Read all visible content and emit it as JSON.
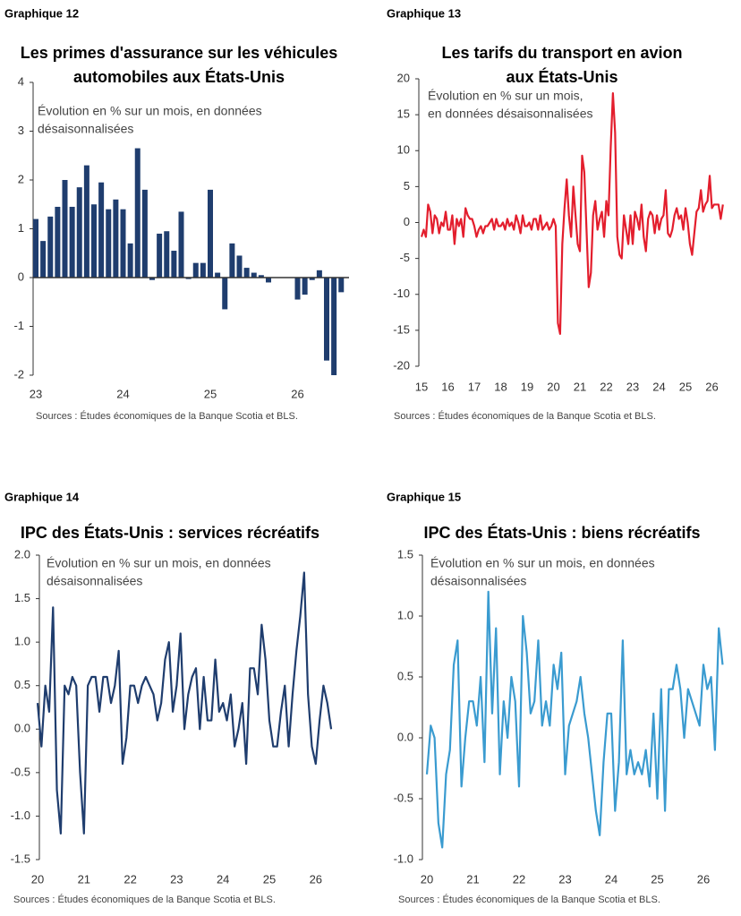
{
  "chart_data": [
    {
      "type": "bar",
      "label": "Graphique 12",
      "title": [
        "Les primes d'assurance sur les véhicules",
        "automobiles aux États-Unis"
      ],
      "annotation": [
        "Évolution en % sur un mois, en données",
        "désaisonnalisées"
      ],
      "source": "Sources : Études économiques de la Banque Scotia et BLS.",
      "color": "#1f3d6e",
      "categories": [
        "23",
        null,
        null,
        null,
        null,
        null,
        null,
        null,
        null,
        null,
        null,
        null,
        "24",
        null,
        null,
        null,
        null,
        null,
        null,
        null,
        null,
        null,
        null,
        null,
        "25",
        null,
        null,
        null,
        null,
        null,
        null,
        null,
        null,
        null,
        null,
        null,
        "26",
        null,
        null,
        null,
        null,
        null,
        null
      ],
      "values": [
        1.2,
        0.75,
        1.25,
        1.45,
        2.0,
        1.45,
        1.85,
        2.3,
        1.5,
        1.95,
        1.4,
        1.6,
        1.4,
        0.7,
        2.65,
        1.8,
        -0.05,
        0.9,
        0.95,
        0.55,
        1.35,
        -0.03,
        0.3,
        0.3,
        1.8,
        0.1,
        -0.65,
        0.7,
        0.45,
        0.2,
        0.1,
        0.05,
        -0.1,
        0,
        0,
        0,
        -0.45,
        -0.35,
        -0.05,
        0.15,
        -1.7,
        -2.0,
        -0.3
      ],
      "ylim": [
        -2,
        4
      ],
      "yticks": [
        -2,
        -1,
        0,
        1,
        2,
        3,
        4
      ]
    },
    {
      "type": "line",
      "label": "Graphique 13",
      "title": [
        "Les tarifs du transport en avion",
        "aux États-Unis"
      ],
      "annotation": [
        "Évolution en % sur un mois,",
        "en données désaisonnalisées"
      ],
      "source": "Sources : Études économiques de la Banque Scotia et BLS.",
      "color": "#e31e2d",
      "categories": [
        "15",
        null,
        null,
        null,
        null,
        null,
        null,
        null,
        null,
        null,
        null,
        null,
        "16",
        null,
        null,
        null,
        null,
        null,
        null,
        null,
        null,
        null,
        null,
        null,
        "17",
        null,
        null,
        null,
        null,
        null,
        null,
        null,
        null,
        null,
        null,
        null,
        "18",
        null,
        null,
        null,
        null,
        null,
        null,
        null,
        null,
        null,
        null,
        null,
        "19",
        null,
        null,
        null,
        null,
        null,
        null,
        null,
        null,
        null,
        null,
        null,
        "20",
        null,
        null,
        null,
        null,
        null,
        null,
        null,
        null,
        null,
        null,
        null,
        "21",
        null,
        null,
        null,
        null,
        null,
        null,
        null,
        null,
        null,
        null,
        null,
        "22",
        null,
        null,
        null,
        null,
        null,
        null,
        null,
        null,
        null,
        null,
        null,
        "23",
        null,
        null,
        null,
        null,
        null,
        null,
        null,
        null,
        null,
        null,
        null,
        "24",
        null,
        null,
        null,
        null,
        null,
        null,
        null,
        null,
        null,
        null,
        null,
        "25",
        null,
        null,
        null,
        null,
        null,
        null,
        null,
        null,
        null,
        null,
        null,
        "26",
        null,
        null,
        null,
        null,
        null
      ],
      "values": [
        -2,
        -1,
        -2,
        2.5,
        1.5,
        -1.5,
        1,
        0.5,
        -1.5,
        0,
        -0.5,
        1.5,
        -1,
        -1,
        1,
        -3,
        0.5,
        -0.5,
        0.5,
        -2,
        2,
        1,
        0.5,
        0.5,
        -0.5,
        -2,
        -1,
        -0.5,
        -1.5,
        -0.5,
        -0.5,
        0,
        0.5,
        -1,
        0.5,
        -0.5,
        -0.5,
        0,
        -1,
        0.5,
        -0.5,
        0,
        -1,
        1,
        0,
        -1.5,
        1,
        -0.5,
        -0.5,
        0,
        -1,
        0.5,
        0.5,
        -1,
        1,
        -1,
        -0.5,
        0,
        -1,
        -0.5,
        0.5,
        -0.5,
        -14,
        -15.5,
        -3,
        2,
        6,
        1,
        -2,
        5,
        1,
        -3,
        -4,
        9.3,
        7,
        -1,
        -9,
        -7,
        1,
        3,
        -1,
        0.5,
        1.5,
        -2,
        3,
        1,
        10.5,
        18,
        12.5,
        -2,
        -4.5,
        -5,
        1,
        -1,
        -3,
        1,
        -3,
        1.5,
        0.5,
        -1,
        2.5,
        -2,
        -4,
        0.5,
        1.5,
        1,
        -1.5,
        1,
        -1,
        0.5,
        1,
        4.5,
        -1.5,
        -2,
        -1,
        1,
        2,
        0.5,
        1,
        -1,
        2,
        0,
        -3,
        -4.5,
        -1.5,
        1.5,
        2,
        4.5,
        1.5,
        2.5,
        3,
        6.5,
        2,
        2.5,
        2.5,
        2.5,
        0.5,
        2.5
      ],
      "ylim": [
        -20,
        20
      ],
      "yticks": [
        -20,
        -15,
        -10,
        -5,
        0,
        5,
        10,
        15,
        20
      ]
    },
    {
      "type": "line",
      "label": "Graphique 14",
      "title": [
        "IPC des États-Unis : services récréatifs"
      ],
      "annotation": [
        "Évolution en % sur un mois, en données",
        "désaisonnalisées"
      ],
      "source": "Sources : Études économiques de la Banque Scotia et BLS.",
      "color": "#1f3d6e",
      "categories": [
        "20",
        null,
        null,
        null,
        null,
        null,
        null,
        null,
        null,
        null,
        null,
        null,
        "21",
        null,
        null,
        null,
        null,
        null,
        null,
        null,
        null,
        null,
        null,
        null,
        "22",
        null,
        null,
        null,
        null,
        null,
        null,
        null,
        null,
        null,
        null,
        null,
        "23",
        null,
        null,
        null,
        null,
        null,
        null,
        null,
        null,
        null,
        null,
        null,
        "24",
        null,
        null,
        null,
        null,
        null,
        null,
        null,
        null,
        null,
        null,
        null,
        "25",
        null,
        null,
        null,
        null,
        null,
        null,
        null,
        null,
        null,
        null,
        null,
        "26",
        null,
        null,
        null,
        null
      ],
      "values": [
        0.3,
        -0.2,
        0.5,
        0.2,
        1.4,
        -0.7,
        -1.2,
        0.5,
        0.4,
        0.6,
        0.5,
        -0.5,
        -1.2,
        0.5,
        0.6,
        0.6,
        0.2,
        0.6,
        0.6,
        0.3,
        0.5,
        0.9,
        -0.4,
        -0.1,
        0.5,
        0.5,
        0.3,
        0.5,
        0.6,
        0.5,
        0.4,
        0.1,
        0.3,
        0.8,
        1.0,
        0.2,
        0.5,
        1.1,
        0,
        0.4,
        0.6,
        0.7,
        0,
        0.6,
        0.1,
        0.1,
        0.8,
        0.2,
        0.3,
        0.1,
        0.4,
        -0.2,
        0,
        0.3,
        -0.4,
        0.7,
        0.7,
        0.4,
        1.2,
        0.8,
        0.1,
        -0.2,
        -0.2,
        0.2,
        0.5,
        -0.2,
        0.4,
        0.9,
        1.3,
        1.8,
        0.4,
        -0.2,
        -0.4,
        0.1,
        0.5,
        0.3,
        0
      ],
      "ylim": [
        -1.5,
        2
      ],
      "yticks": [
        -1.5,
        {
          "value": -1,
          "label": "-1.0"
        },
        -0.5,
        {
          "value": 0,
          "label": "0.0"
        },
        0.5,
        {
          "value": 1,
          "label": "1.0"
        },
        1.5,
        {
          "value": 2,
          "label": "2.0"
        }
      ]
    },
    {
      "type": "line",
      "label": "Graphique 15",
      "title": [
        "IPC des États-Unis : biens récréatifs"
      ],
      "annotation": [
        "Évolution en % sur un mois, en données",
        "désaisonnalisées"
      ],
      "source": "Sources : Études économiques de la Banque Scotia et BLS.",
      "color": "#3a9bd0",
      "categories": [
        "20",
        null,
        null,
        null,
        null,
        null,
        null,
        null,
        null,
        null,
        null,
        null,
        "21",
        null,
        null,
        null,
        null,
        null,
        null,
        null,
        null,
        null,
        null,
        null,
        "22",
        null,
        null,
        null,
        null,
        null,
        null,
        null,
        null,
        null,
        null,
        null,
        "23",
        null,
        null,
        null,
        null,
        null,
        null,
        null,
        null,
        null,
        null,
        null,
        "24",
        null,
        null,
        null,
        null,
        null,
        null,
        null,
        null,
        null,
        null,
        null,
        "25",
        null,
        null,
        null,
        null,
        null,
        null,
        null,
        null,
        null,
        null,
        null,
        "26",
        null,
        null,
        null,
        null,
        null
      ],
      "values": [
        -0.3,
        0.1,
        0,
        -0.7,
        -0.9,
        -0.3,
        -0.1,
        0.6,
        0.8,
        -0.4,
        0,
        0.3,
        0.3,
        0.1,
        0.5,
        -0.2,
        1.2,
        0.2,
        0.9,
        -0.3,
        0.3,
        0,
        0.5,
        0.3,
        -0.4,
        1.0,
        0.7,
        0.2,
        0.3,
        0.8,
        0.1,
        0.3,
        0.1,
        0.6,
        0.4,
        0.7,
        -0.3,
        0.1,
        0.2,
        0.3,
        0.5,
        0.2,
        0,
        -0.3,
        -0.6,
        -0.8,
        -0.2,
        0.2,
        0.2,
        -0.6,
        -0.2,
        0.8,
        -0.3,
        -0.1,
        -0.3,
        -0.2,
        -0.3,
        -0.1,
        -0.4,
        0.2,
        -0.5,
        0.4,
        -0.6,
        0.4,
        0.4,
        0.6,
        0.4,
        0,
        0.4,
        0.3,
        0.2,
        0.1,
        0.6,
        0.4,
        0.5,
        -0.1,
        0.9,
        0.6
      ],
      "ylim": [
        -1,
        1.5
      ],
      "yticks": [
        {
          "value": -1,
          "label": "-1.0"
        },
        -0.5,
        {
          "value": 0,
          "label": "0.0"
        },
        0.5,
        {
          "value": 1,
          "label": "1.0"
        },
        1.5
      ]
    }
  ]
}
